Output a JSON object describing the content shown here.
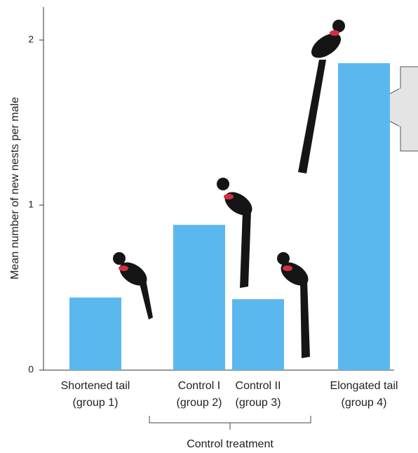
{
  "chart_data": {
    "type": "bar",
    "y_label": "Mean number of new nests per male",
    "categories": [
      "Shortened tail",
      "Control I",
      "Control II",
      "Elongated tail"
    ],
    "category_groups": [
      "(group 1)",
      "(group 2)",
      "(group 3)",
      "(group 4)"
    ],
    "bracket_label": "Control treatment",
    "values": [
      0.44,
      0.88,
      0.43,
      1.86
    ],
    "color": "#5bb8ee",
    "ylim": [
      0,
      2.2
    ],
    "yticks": [
      0,
      1,
      2
    ],
    "grid": false
  }
}
